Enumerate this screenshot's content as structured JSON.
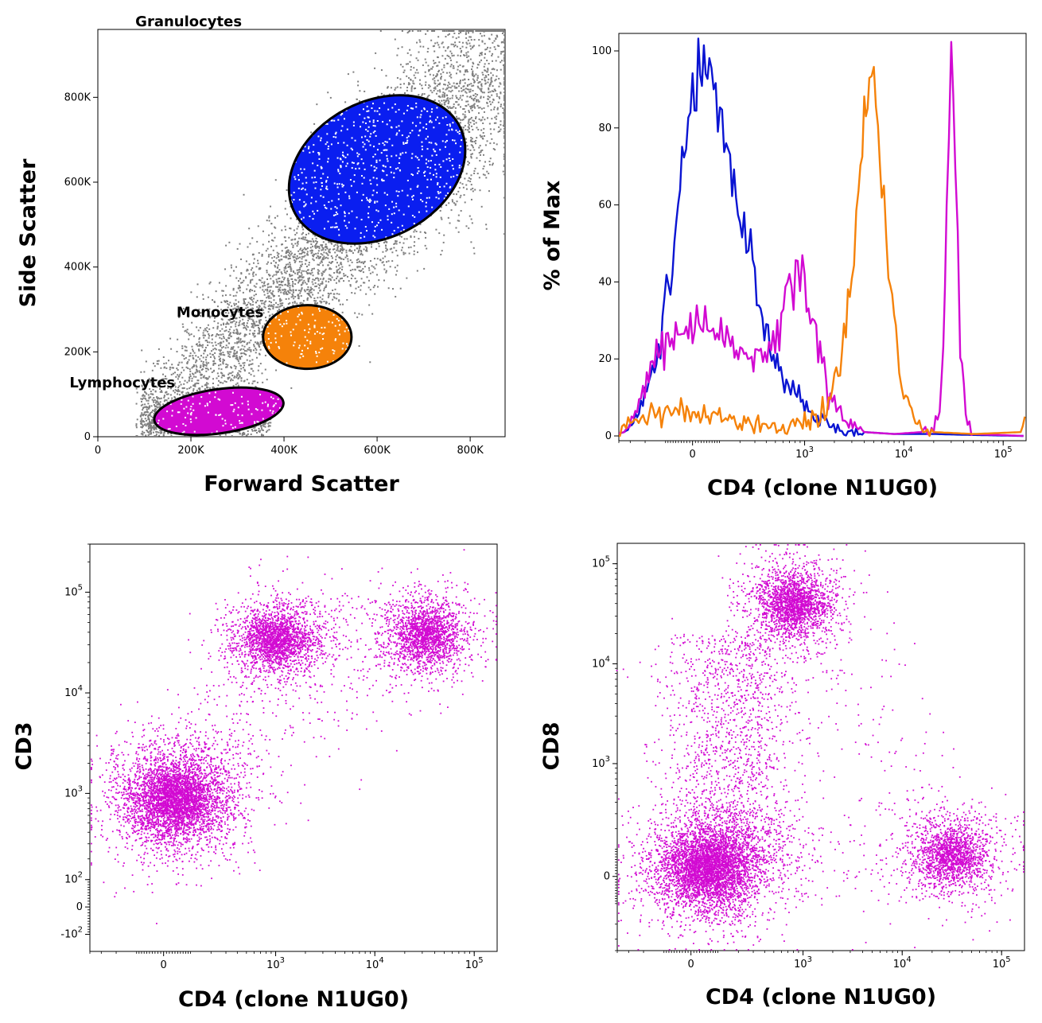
{
  "chart_data": [
    {
      "type": "scatter",
      "panel": "A",
      "xlabel": "Forward Scatter",
      "ylabel": "Side Scatter",
      "xlim": [
        0,
        875000
      ],
      "ylim": [
        0,
        960000
      ],
      "x_ticks": [
        {
          "value": 0,
          "label": "0"
        },
        {
          "value": 200000,
          "label": "200K"
        },
        {
          "value": 400000,
          "label": "400K"
        },
        {
          "value": 600000,
          "label": "600K"
        },
        {
          "value": 800000,
          "label": "800K"
        }
      ],
      "y_ticks": [
        {
          "value": 0,
          "label": "0"
        },
        {
          "value": 200000,
          "label": "200K"
        },
        {
          "value": 400000,
          "label": "400K"
        },
        {
          "value": 600000,
          "label": "600K"
        },
        {
          "value": 800000,
          "label": "800K"
        }
      ],
      "gates": [
        {
          "name": "Granulocytes",
          "color": "#0a1ef0",
          "center": [
            600000,
            630000
          ],
          "extent": [
            200000,
            160000
          ],
          "tilt_deg": -28
        },
        {
          "name": "Monocytes",
          "color": "#f5820a",
          "center": [
            450000,
            235000
          ],
          "extent": [
            95000,
            75000
          ],
          "tilt_deg": 0
        },
        {
          "name": "Lymphocytes",
          "color": "#d20ad2",
          "center": [
            260000,
            60000
          ],
          "extent": [
            140000,
            52000
          ],
          "tilt_deg": -8
        }
      ],
      "background_color": "#7f7f7f"
    },
    {
      "type": "line",
      "panel": "B",
      "xlabel": "CD4 (clone N1UG0)",
      "ylabel": "% of Max",
      "x_scale": "biexponential",
      "xlim": [
        -400,
        170000
      ],
      "ylim": [
        0,
        100
      ],
      "x_ticks": [
        {
          "value": 0,
          "base": "0",
          "exp": ""
        },
        {
          "value": 1000,
          "base": "10",
          "exp": "3"
        },
        {
          "value": 10000,
          "base": "10",
          "exp": "4"
        },
        {
          "value": 100000,
          "base": "10",
          "exp": "5"
        }
      ],
      "y_ticks": [
        0,
        20,
        40,
        60,
        80,
        100
      ],
      "series": [
        {
          "color": "#0a14d2",
          "points": [
            [
              -500,
              0
            ],
            [
              -350,
              1
            ],
            [
              -250,
              5
            ],
            [
              -150,
              18
            ],
            [
              -80,
              40
            ],
            [
              -30,
              70
            ],
            [
              0,
              90
            ],
            [
              20,
              100
            ],
            [
              60,
              92
            ],
            [
              120,
              80
            ],
            [
              200,
              60
            ],
            [
              300,
              40
            ],
            [
              400,
              25
            ],
            [
              500,
              18
            ],
            [
              650,
              14
            ],
            [
              800,
              11
            ],
            [
              1000,
              8
            ],
            [
              1300,
              5
            ],
            [
              1700,
              3
            ],
            [
              2500,
              1.5
            ],
            [
              4000,
              1
            ],
            [
              8000,
              0.5
            ],
            [
              20000,
              0.5
            ],
            [
              40000,
              0.3
            ],
            [
              160000,
              0
            ]
          ]
        },
        {
          "color": "#d20ad2",
          "points": [
            [
              -500,
              0
            ],
            [
              -350,
              1
            ],
            [
              -250,
              8
            ],
            [
              -150,
              20
            ],
            [
              -60,
              27
            ],
            [
              0,
              30
            ],
            [
              60,
              28
            ],
            [
              150,
              24
            ],
            [
              250,
              21
            ],
            [
              350,
              20
            ],
            [
              450,
              22
            ],
            [
              550,
              28
            ],
            [
              700,
              38
            ],
            [
              850,
              43
            ],
            [
              1000,
              40
            ],
            [
              1200,
              30
            ],
            [
              1500,
              18
            ],
            [
              2000,
              8
            ],
            [
              2800,
              3
            ],
            [
              4000,
              1
            ],
            [
              8000,
              0.5
            ],
            [
              15000,
              1
            ],
            [
              20000,
              2
            ],
            [
              24000,
              10
            ],
            [
              27000,
              55
            ],
            [
              30000,
              100
            ],
            [
              33000,
              70
            ],
            [
              37000,
              25
            ],
            [
              42000,
              5
            ],
            [
              50000,
              0.5
            ],
            [
              160000,
              0
            ]
          ]
        },
        {
          "color": "#f5820a",
          "points": [
            [
              -500,
              0
            ],
            [
              -300,
              3
            ],
            [
              -200,
              5
            ],
            [
              -100,
              7
            ],
            [
              0,
              6
            ],
            [
              100,
              5
            ],
            [
              200,
              4
            ],
            [
              400,
              3
            ],
            [
              600,
              2
            ],
            [
              800,
              3
            ],
            [
              1000,
              3
            ],
            [
              1300,
              4
            ],
            [
              1600,
              6
            ],
            [
              2000,
              12
            ],
            [
              2500,
              25
            ],
            [
              3000,
              42
            ],
            [
              3500,
              62
            ],
            [
              4000,
              80
            ],
            [
              4500,
              92
            ],
            [
              5000,
              90
            ],
            [
              5500,
              80
            ],
            [
              6000,
              65
            ],
            [
              7000,
              45
            ],
            [
              8000,
              30
            ],
            [
              9000,
              20
            ],
            [
              10000,
              12
            ],
            [
              12000,
              6
            ],
            [
              15000,
              2
            ],
            [
              20000,
              1
            ],
            [
              50000,
              0.5
            ],
            [
              150000,
              1
            ],
            [
              165000,
              5
            ]
          ]
        }
      ]
    },
    {
      "type": "scatter",
      "panel": "C",
      "xlabel": "CD4 (clone N1UG0)",
      "ylabel": "CD3",
      "x_scale": "biexponential",
      "y_scale": "biexponential",
      "xlim": [
        -400,
        170000
      ],
      "ylim": [
        -180,
        300000
      ],
      "x_ticks": [
        {
          "value": 0,
          "base": "0",
          "exp": ""
        },
        {
          "value": 1000,
          "base": "10",
          "exp": "3"
        },
        {
          "value": 10000,
          "base": "10",
          "exp": "4"
        },
        {
          "value": 100000,
          "base": "10",
          "exp": "5"
        }
      ],
      "y_ticks": [
        {
          "value": -100,
          "base": "-10",
          "exp": "2"
        },
        {
          "value": 0,
          "base": "0",
          "exp": ""
        },
        {
          "value": 100,
          "base": "10",
          "exp": "2"
        },
        {
          "value": 1000,
          "base": "10",
          "exp": "3"
        },
        {
          "value": 10000,
          "base": "10",
          "exp": "4"
        },
        {
          "value": 100000,
          "base": "10",
          "exp": "5"
        }
      ],
      "point_color": "#d20ad2",
      "populations": [
        {
          "x": 40,
          "y": 900,
          "count": 4200
        },
        {
          "x": 1000,
          "y": 35000,
          "count": 2000
        },
        {
          "x": 33000,
          "y": 38000,
          "count": 1800
        }
      ]
    },
    {
      "type": "scatter",
      "panel": "D",
      "xlabel": "CD4 (clone N1UG0)",
      "ylabel": "CD8",
      "x_scale": "biexponential",
      "y_scale": "biexponential",
      "xlim": [
        -400,
        170000
      ],
      "ylim": [
        -400,
        160000
      ],
      "x_ticks": [
        {
          "value": 0,
          "base": "0",
          "exp": ""
        },
        {
          "value": 1000,
          "base": "10",
          "exp": "3"
        },
        {
          "value": 10000,
          "base": "10",
          "exp": "4"
        },
        {
          "value": 100000,
          "base": "10",
          "exp": "5"
        }
      ],
      "y_ticks": [
        {
          "value": 0,
          "base": "0",
          "exp": ""
        },
        {
          "value": 1000,
          "base": "10",
          "exp": "3"
        },
        {
          "value": 10000,
          "base": "10",
          "exp": "4"
        },
        {
          "value": 100000,
          "base": "10",
          "exp": "5"
        }
      ],
      "point_color": "#d20ad2",
      "populations": [
        {
          "x": 60,
          "y": 30,
          "count": 4200
        },
        {
          "x": 800,
          "y": 40000,
          "count": 2000
        },
        {
          "x": 32000,
          "y": 80,
          "count": 1600
        }
      ]
    }
  ]
}
